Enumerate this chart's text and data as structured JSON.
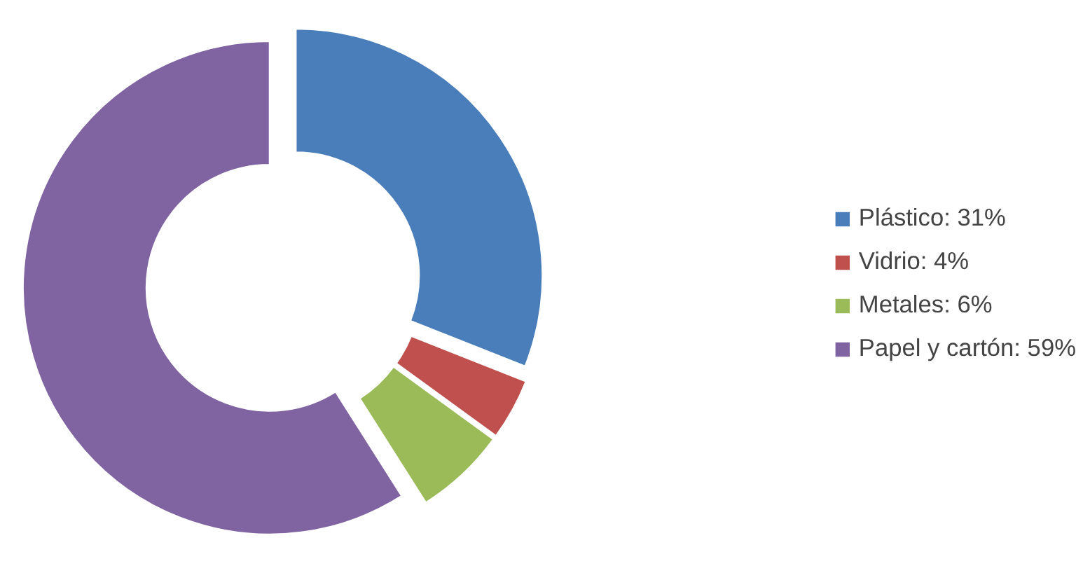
{
  "chart_data": {
    "type": "donut",
    "categories": [
      "Plástico: 31%",
      "Vidrio: 4%",
      "Metales: 6%",
      "Papel y cartón: 59%"
    ],
    "values": [
      31,
      4,
      6,
      59
    ],
    "colors": [
      "#4a7ebb",
      "#c0504d",
      "#9bbb59",
      "#8064a2"
    ],
    "legend": "right"
  }
}
